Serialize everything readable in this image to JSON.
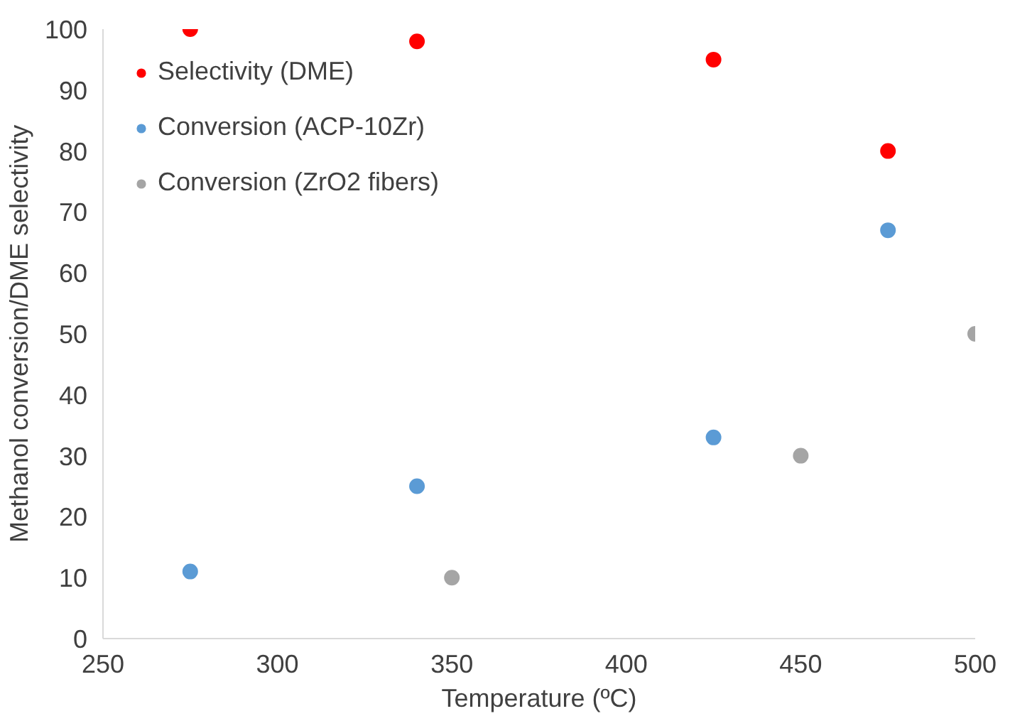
{
  "chart_data": {
    "type": "scatter",
    "xlabel": "Temperature (ºC)",
    "ylabel": "Methanol conversion/DME selectivity",
    "xlim": [
      250,
      500
    ],
    "xticks": [
      250,
      300,
      350,
      400,
      450,
      500
    ],
    "ylim": [
      0,
      100
    ],
    "yticks": [
      0,
      10,
      20,
      30,
      40,
      50,
      60,
      70,
      80,
      90,
      100
    ],
    "grid": false,
    "legend": "top left",
    "marker": "circle",
    "series": [
      {
        "name": "Selectivity (DME)",
        "color": "#ff0000",
        "x": [
          275,
          340,
          425,
          475
        ],
        "values": [
          100,
          98,
          95,
          80
        ]
      },
      {
        "name": "Conversion (ACP-10Zr)",
        "color": "#5b9bd5",
        "x": [
          275,
          340,
          425,
          475
        ],
        "values": [
          11,
          25,
          33,
          67
        ]
      },
      {
        "name": "Conversion (ZrO2 fibers)",
        "color": "#a5a5a5",
        "x": [
          350,
          450,
          500
        ],
        "values": [
          10,
          30,
          50
        ]
      }
    ]
  }
}
